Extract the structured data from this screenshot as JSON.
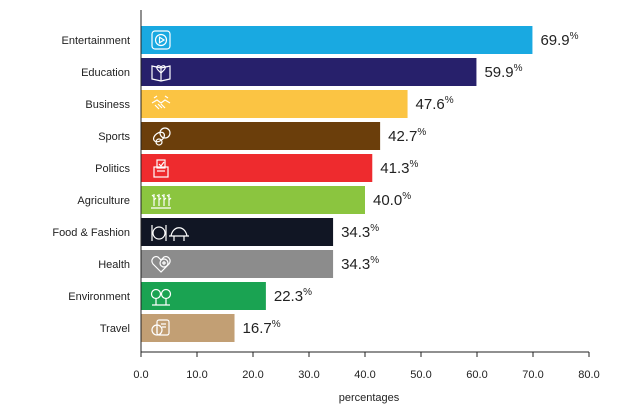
{
  "chart_data": {
    "type": "bar",
    "orientation": "horizontal",
    "categories": [
      "Entertainment",
      "Education",
      "Business",
      "Sports",
      "Politics",
      "Agriculture",
      "Food & Fashion",
      "Health",
      "Environment",
      "Travel"
    ],
    "values": [
      69.9,
      59.9,
      47.6,
      42.7,
      41.3,
      40.0,
      34.3,
      34.3,
      22.3,
      16.7
    ],
    "value_labels": [
      "69.9",
      "59.9",
      "47.6",
      "42.7",
      "41.3",
      "40.0",
      "34.3",
      "34.3",
      "22.3",
      "16.7"
    ],
    "value_suffix": "%",
    "colors": [
      "#19A9E1",
      "#27206B",
      "#FBC443",
      "#6B3E0B",
      "#EE2B2E",
      "#8BC53F",
      "#111624",
      "#8C8C8C",
      "#1AA352",
      "#C29F74"
    ],
    "icons": [
      "video-play-icon",
      "book-heart-icon",
      "handshake-icon",
      "sports-balls-icon",
      "ballot-box-icon",
      "crops-icon",
      "food-and-hat-icon",
      "heart-plus-icon",
      "trees-icon",
      "coin-ticket-icon"
    ],
    "xlabel": "percentages",
    "ylabel": "",
    "xlim": [
      0,
      80
    ],
    "xticks": [
      "0.0",
      "10.0",
      "20.0",
      "30.0",
      "40.0",
      "50.0",
      "60.0",
      "70.0",
      "80.0"
    ],
    "grid": false,
    "legend": "none"
  }
}
